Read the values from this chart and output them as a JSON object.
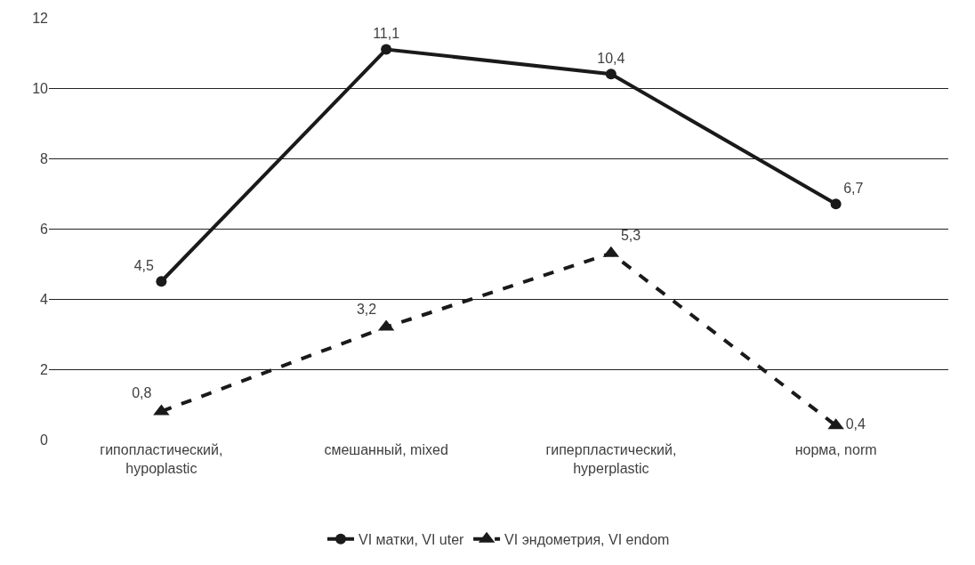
{
  "chart_data": {
    "type": "line",
    "categories": [
      "гипопластический,\nhypoplastic",
      "смешанный, mixed",
      "гиперпластический,\nhyperplastic",
      "норма, norm"
    ],
    "series": [
      {
        "name": "VI матки, VI uter",
        "color": "#1a1a1a",
        "values": [
          4.5,
          11.1,
          10.4,
          6.7
        ],
        "value_labels": [
          "4,5",
          "11,1",
          "10,4",
          "6,7"
        ],
        "marker": "circle",
        "line_style": "solid"
      },
      {
        "name": "VI эндометрия, VI endom",
        "color": "#1a1a1a",
        "values": [
          0.8,
          3.2,
          5.3,
          0.4
        ],
        "value_labels": [
          "0,8",
          "3,2",
          "5,3",
          "0,4"
        ],
        "marker": "triangle",
        "line_style": "dashed"
      }
    ],
    "ylim": [
      0,
      12
    ],
    "yticks": [
      0,
      2,
      4,
      6,
      8,
      10,
      12
    ],
    "grid": "y",
    "legend": "bottom"
  }
}
